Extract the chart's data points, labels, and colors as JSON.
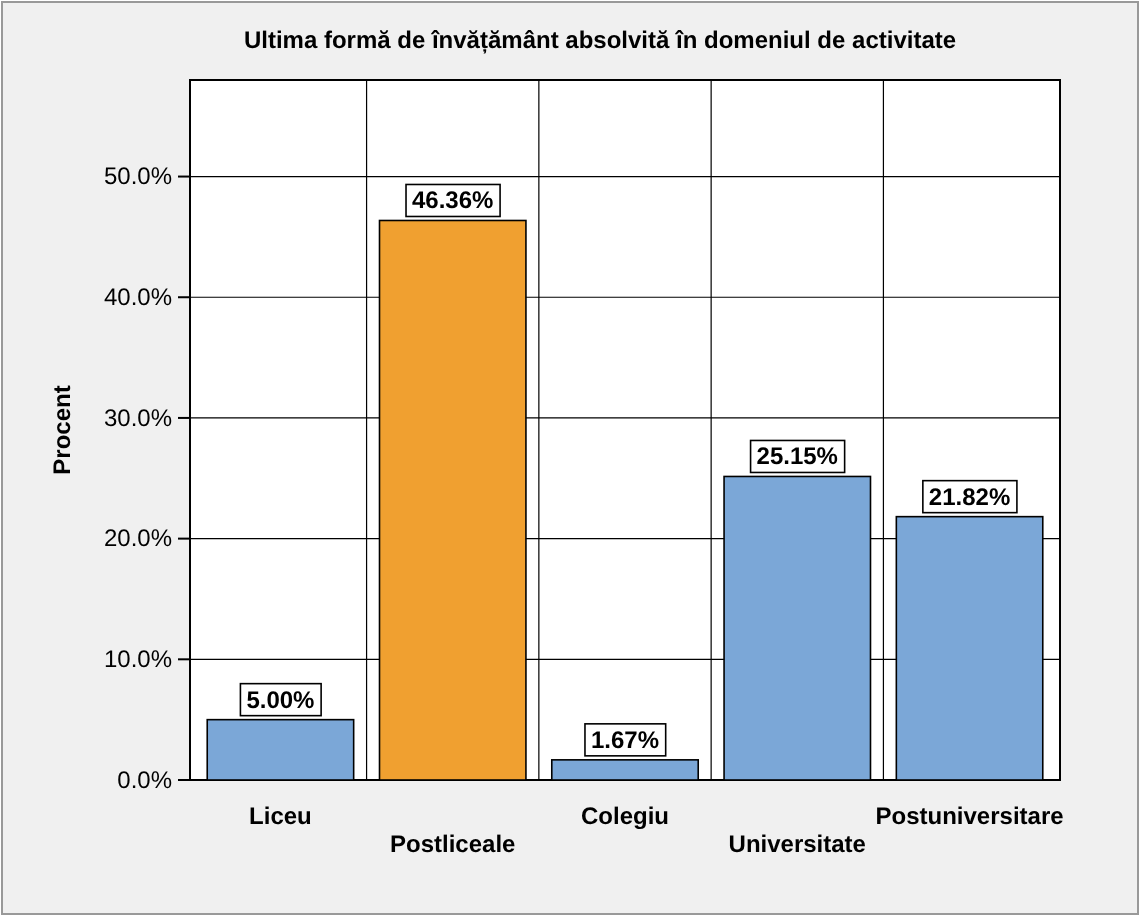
{
  "chart_data": {
    "type": "bar",
    "title": "Ultima formă de învățământ absolvită în domeniul de activitate",
    "ylabel": "Procent",
    "categories": [
      "Liceu",
      "Postliceale",
      "Colegiu",
      "Universitate",
      "Postuniversitare"
    ],
    "values": [
      5.0,
      46.36,
      1.67,
      25.15,
      21.82
    ],
    "colors": [
      "#7ba7d7",
      "#f0a030",
      "#7ba7d7",
      "#7ba7d7",
      "#7ba7d7"
    ],
    "ylim": [
      0,
      58
    ],
    "yticks": [
      {
        "value": 0,
        "label": "0.0%"
      },
      {
        "value": 10,
        "label": "10.0%"
      },
      {
        "value": 20,
        "label": "20.0%"
      },
      {
        "value": 30,
        "label": "30.0%"
      },
      {
        "value": 40,
        "label": "40.0%"
      },
      {
        "value": 50,
        "label": "50.0%"
      }
    ],
    "value_labels": [
      "5.00%",
      "46.36%",
      "1.67%",
      "25.15%",
      "21.82%"
    ],
    "grid": true
  }
}
